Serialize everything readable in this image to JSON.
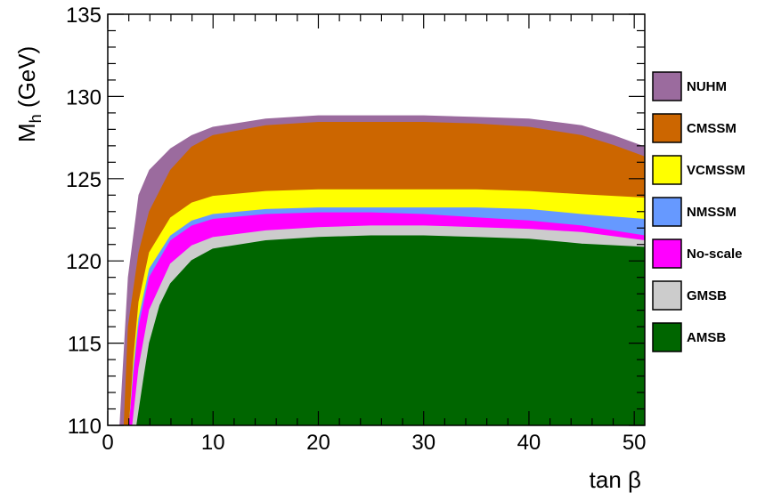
{
  "chart_data": {
    "type": "area",
    "title": "",
    "xlabel": "tan β",
    "ylabel_main": "M",
    "ylabel_sub": "h",
    "ylabel_unit": " (GeV)",
    "xlim": [
      0,
      51
    ],
    "ylim": [
      110,
      135
    ],
    "x_ticks": [
      0,
      10,
      20,
      30,
      40,
      50
    ],
    "y_ticks": [
      110,
      115,
      120,
      125,
      130,
      135
    ],
    "x_tick_labels": [
      "0",
      "10",
      "20",
      "30",
      "40",
      "50"
    ],
    "y_tick_labels": [
      "110",
      "115",
      "120",
      "125",
      "130",
      "135"
    ],
    "legend_position": "right",
    "series": [
      {
        "name": "NUHM",
        "color": "#9b6b9e",
        "x": [
          1.2,
          2,
          3,
          4,
          6,
          8,
          10,
          15,
          20,
          25,
          30,
          35,
          40,
          45,
          48,
          51
        ],
        "upper": [
          110,
          119,
          124,
          125.5,
          126.8,
          127.6,
          128.1,
          128.6,
          128.8,
          128.8,
          128.8,
          128.7,
          128.6,
          128.2,
          127.6,
          126.9
        ]
      },
      {
        "name": "CMSSM",
        "color": "#cc6600",
        "x": [
          1.6,
          2,
          3,
          4,
          6,
          8,
          10,
          15,
          20,
          25,
          30,
          35,
          40,
          45,
          48,
          51
        ],
        "upper": [
          110,
          116,
          120.5,
          123,
          125.5,
          126.9,
          127.6,
          128.2,
          128.4,
          128.4,
          128.4,
          128.3,
          128.1,
          127.6,
          127.0,
          126.3
        ]
      },
      {
        "name": "VCMSSM",
        "color": "#ffff00",
        "x": [
          2.1,
          2.5,
          3,
          4,
          6,
          8,
          10,
          15,
          20,
          25,
          30,
          35,
          40,
          45,
          51
        ],
        "upper": [
          110,
          114,
          117.5,
          120.5,
          122.6,
          123.5,
          123.9,
          124.2,
          124.3,
          124.3,
          124.3,
          124.3,
          124.2,
          124.0,
          123.8
        ]
      },
      {
        "name": "NMSSM",
        "color": "#6699ff",
        "x": [
          2.1,
          2.5,
          3,
          4,
          6,
          8,
          10,
          15,
          20,
          25,
          30,
          35,
          40,
          45,
          51
        ],
        "upper": [
          110,
          113.5,
          116.5,
          119.5,
          121.5,
          122.4,
          122.8,
          123.1,
          123.2,
          123.2,
          123.2,
          123.2,
          123.1,
          122.8,
          122.5
        ]
      },
      {
        "name": "No-scale",
        "color": "#ff00ff",
        "x": [
          2.1,
          2.5,
          3,
          4,
          6,
          8,
          10,
          15,
          20,
          25,
          30,
          35,
          40,
          45,
          51
        ],
        "upper": [
          110,
          113,
          116,
          119,
          121.2,
          122.1,
          122.5,
          122.8,
          122.9,
          122.9,
          122.8,
          122.6,
          122.4,
          122.1,
          121.5
        ]
      },
      {
        "name": "GMSB",
        "color": "#cccccc",
        "x": [
          2.4,
          3,
          4,
          6,
          8,
          10,
          15,
          20,
          25,
          30,
          35,
          40,
          45,
          51
        ],
        "upper": [
          110,
          113.5,
          117,
          119.8,
          120.9,
          121.4,
          121.8,
          122.0,
          122.1,
          122.1,
          122.0,
          121.9,
          121.7,
          121.2
        ]
      },
      {
        "name": "AMSB",
        "color": "#006600",
        "x": [
          2.8,
          3.5,
          4,
          5,
          6,
          8,
          10,
          15,
          20,
          25,
          30,
          35,
          40,
          45,
          51
        ],
        "upper": [
          110,
          113,
          115,
          117.3,
          118.6,
          120.0,
          120.7,
          121.2,
          121.4,
          121.5,
          121.5,
          121.4,
          121.3,
          121.0,
          120.8
        ]
      }
    ]
  }
}
